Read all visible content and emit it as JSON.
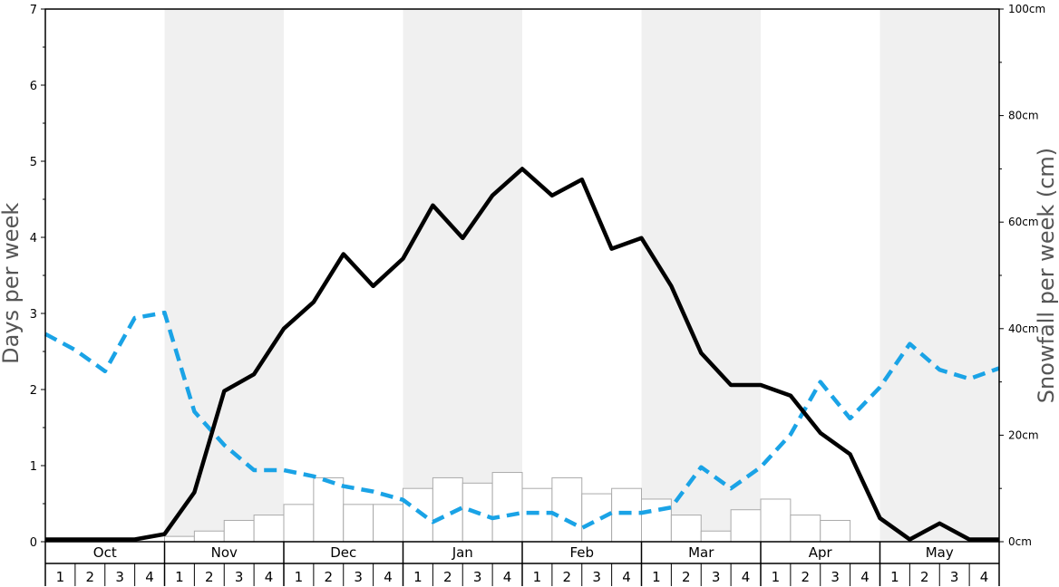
{
  "chart_data": {
    "type": "bar",
    "title": "",
    "ylabel_left": "Days per week",
    "ylabel_right": "Snowfall per week (cm)",
    "ylim_left": [
      0,
      7
    ],
    "ylim_right": [
      0,
      100
    ],
    "left_ticks": [
      "0",
      "1",
      "2",
      "3",
      "4",
      "5",
      "6",
      "7"
    ],
    "right_ticks": [
      "0cm",
      "20cm",
      "40cm",
      "60cm",
      "80cm",
      "100cm"
    ],
    "months": [
      "Oct",
      "Nov",
      "Dec",
      "Jan",
      "Feb",
      "Mar",
      "Apr",
      "May"
    ],
    "weeks_per_month": [
      "1",
      "2",
      "3",
      "4"
    ],
    "shaded_months": [
      "Nov",
      "Jan",
      "Mar",
      "May"
    ],
    "colors": {
      "shade": "#f0f0f0",
      "bar_fill": "#ffffff",
      "bar_stroke": "#aaaaaa",
      "days_line": "#000000",
      "snow_line": "#1aa3e6"
    },
    "series": [
      {
        "axis": "right",
        "style": "bars",
        "values": [
          0,
          0,
          0,
          0,
          1,
          2,
          4,
          5,
          7,
          12,
          7,
          7,
          10,
          12,
          11,
          13,
          10,
          12,
          9,
          10,
          8,
          5,
          2,
          6,
          8,
          5,
          4,
          0,
          0,
          0,
          0,
          0
        ]
      },
      {
        "axis": "left",
        "style": "solid-line",
        "values": [
          0.03,
          0.03,
          0.03,
          0.03,
          0.1,
          0.65,
          1.98,
          2.2,
          2.8,
          3.15,
          3.78,
          3.36,
          3.72,
          4.42,
          3.99,
          4.55,
          4.9,
          4.55,
          4.76,
          3.85,
          3.99,
          3.36,
          2.48,
          2.06,
          2.06,
          1.92,
          1.43,
          1.15,
          0.31,
          0.03,
          0.24,
          0.03,
          0.03
        ]
      },
      {
        "axis": "left",
        "style": "dashed-line",
        "values": [
          2.73,
          2.52,
          2.24,
          2.94,
          3.01,
          1.71,
          1.27,
          0.94,
          0.94,
          0.86,
          0.73,
          0.66,
          0.55,
          0.26,
          0.45,
          0.31,
          0.38,
          0.38,
          0.18,
          0.38,
          0.38,
          0.45,
          0.98,
          0.7,
          0.98,
          1.41,
          2.1,
          1.62,
          2.03,
          2.6,
          2.26,
          2.14,
          2.28
        ]
      }
    ]
  }
}
